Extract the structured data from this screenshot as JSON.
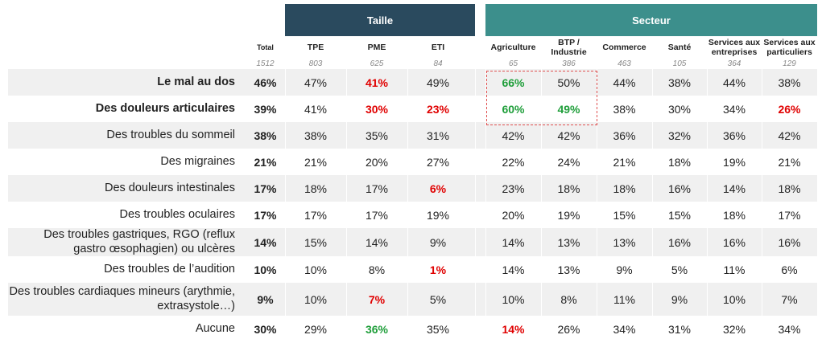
{
  "groups": {
    "taille": "Taille",
    "secteur": "Secteur"
  },
  "columns": [
    {
      "label": "Total",
      "base": "1512"
    },
    {
      "label": "TPE",
      "base": "803"
    },
    {
      "label": "PME",
      "base": "625"
    },
    {
      "label": "ETI",
      "base": "84"
    },
    {
      "label": "Agriculture",
      "base": "65"
    },
    {
      "label": "BTP / Industrie",
      "base": "386"
    },
    {
      "label": "Commerce",
      "base": "463"
    },
    {
      "label": "Santé",
      "base": "105"
    },
    {
      "label": "Services aux entreprises",
      "base": "364"
    },
    {
      "label": "Services aux particuliers",
      "base": "129"
    }
  ],
  "rows": [
    {
      "label": "Le mal au dos",
      "bold": true,
      "values": [
        "46%",
        "47%",
        "41%",
        "49%",
        "66%",
        "50%",
        "44%",
        "38%",
        "44%",
        "38%"
      ],
      "styles": [
        "",
        "",
        "red",
        "",
        "green",
        "",
        "",
        "",
        "",
        ""
      ]
    },
    {
      "label": "Des douleurs articulaires",
      "bold": true,
      "values": [
        "39%",
        "41%",
        "30%",
        "23%",
        "60%",
        "49%",
        "38%",
        "30%",
        "34%",
        "26%"
      ],
      "styles": [
        "",
        "",
        "red",
        "red",
        "green",
        "green",
        "",
        "",
        "",
        "red"
      ]
    },
    {
      "label": "Des troubles du sommeil",
      "bold": false,
      "values": [
        "38%",
        "38%",
        "35%",
        "31%",
        "42%",
        "42%",
        "36%",
        "32%",
        "36%",
        "42%"
      ],
      "styles": [
        "",
        "",
        "",
        "",
        "",
        "",
        "",
        "",
        "",
        ""
      ]
    },
    {
      "label": "Des migraines",
      "bold": false,
      "values": [
        "21%",
        "21%",
        "20%",
        "27%",
        "22%",
        "24%",
        "21%",
        "18%",
        "19%",
        "21%"
      ],
      "styles": [
        "",
        "",
        "",
        "",
        "",
        "",
        "",
        "",
        "",
        ""
      ]
    },
    {
      "label": "Des douleurs intestinales",
      "bold": false,
      "values": [
        "17%",
        "18%",
        "17%",
        "6%",
        "23%",
        "18%",
        "18%",
        "16%",
        "14%",
        "18%"
      ],
      "styles": [
        "",
        "",
        "",
        "red",
        "",
        "",
        "",
        "",
        "",
        ""
      ]
    },
    {
      "label": "Des troubles oculaires",
      "bold": false,
      "values": [
        "17%",
        "17%",
        "17%",
        "19%",
        "20%",
        "19%",
        "15%",
        "15%",
        "18%",
        "17%"
      ],
      "styles": [
        "",
        "",
        "",
        "",
        "",
        "",
        "",
        "",
        "",
        ""
      ]
    },
    {
      "label": "Des troubles gastriques, RGO (reflux gastro œsophagien) ou ulcères",
      "bold": false,
      "values": [
        "14%",
        "15%",
        "14%",
        "9%",
        "14%",
        "13%",
        "13%",
        "16%",
        "16%",
        "16%"
      ],
      "styles": [
        "",
        "",
        "",
        "",
        "",
        "",
        "",
        "",
        "",
        ""
      ]
    },
    {
      "label": "Des troubles de l’audition",
      "bold": false,
      "values": [
        "10%",
        "10%",
        "8%",
        "1%",
        "14%",
        "13%",
        "9%",
        "5%",
        "11%",
        "6%"
      ],
      "styles": [
        "",
        "",
        "",
        "red",
        "",
        "",
        "",
        "",
        "",
        ""
      ]
    },
    {
      "label": "Des troubles cardiaques mineurs (arythmie, extrasystole…)",
      "bold": false,
      "values": [
        "9%",
        "10%",
        "7%",
        "5%",
        "10%",
        "8%",
        "11%",
        "9%",
        "10%",
        "7%"
      ],
      "styles": [
        "",
        "",
        "red",
        "",
        "",
        "",
        "",
        "",
        "",
        ""
      ]
    },
    {
      "label": "Aucune",
      "bold": false,
      "values": [
        "30%",
        "29%",
        "36%",
        "35%",
        "14%",
        "26%",
        "34%",
        "31%",
        "32%",
        "34%"
      ],
      "styles": [
        "",
        "",
        "green",
        "",
        "red",
        "",
        "",
        "",
        "",
        ""
      ]
    }
  ]
}
